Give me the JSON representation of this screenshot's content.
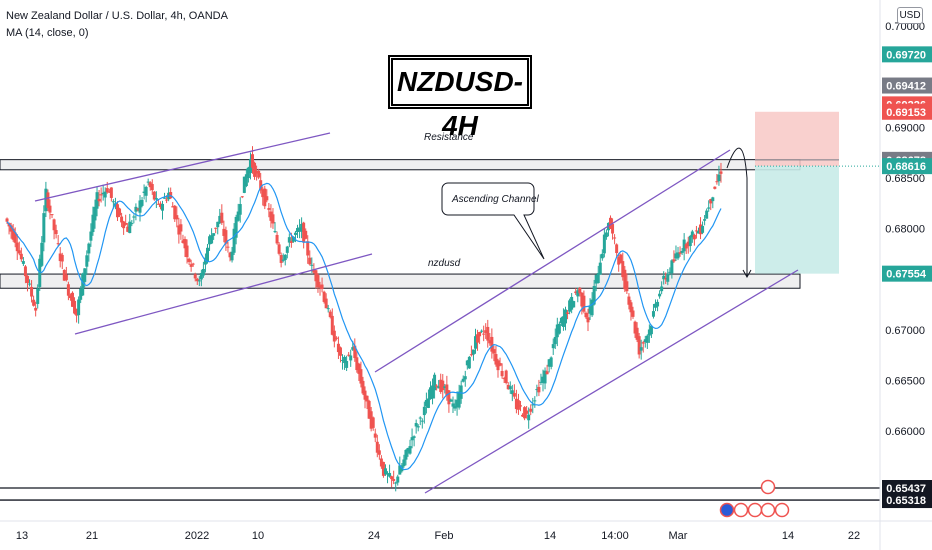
{
  "header": {
    "symbol_line": "New Zealand Dollar / U.S. Dollar, 4h, OANDA",
    "indicator_line": "MA (14, close, 0)"
  },
  "currency_button": "USD",
  "title": "NZDUSD-4H",
  "annotations": {
    "resistance": "Resistance",
    "ascending_channel": "Ascending Channel",
    "support": "nzdusd"
  },
  "colors": {
    "bull": "#26a69a",
    "bear": "#ef5350",
    "ma": "#2196f3",
    "channel": "#7e57c2",
    "stop_zone": "#f8c8c6",
    "target_zone": "#c8ebe8",
    "dark_label": "#131722"
  },
  "chart_data": {
    "type": "candlestick",
    "instrument": "NZDUSD",
    "timeframe": "4h",
    "ylim": [
      0.6515,
      0.7072
    ],
    "y_ticks": [
      "0.70000",
      "0.69000",
      "0.68500",
      "0.68000",
      "0.67000",
      "0.66500",
      "0.66000"
    ],
    "x_ticks": [
      "13",
      "21",
      "2022",
      "10",
      "24",
      "Feb",
      "14",
      "14:00",
      "Mar",
      "14",
      "22"
    ],
    "price_labels": [
      {
        "value": "0.69720",
        "color": "#26a69a"
      },
      {
        "value": "0.69412",
        "color": "#787b86"
      },
      {
        "value": "0.69226",
        "color": "#ef5350"
      },
      {
        "value": "0.69153",
        "color": "#ef5350"
      },
      {
        "value": "0.68678",
        "color": "#787b86"
      },
      {
        "value": "0.68616",
        "color": "#26a69a"
      },
      {
        "value": "0.67554",
        "color": "#26a69a"
      },
      {
        "value": "0.65437",
        "color": "#131722"
      },
      {
        "value": "0.65318",
        "color": "#131722"
      }
    ],
    "zones": [
      {
        "name": "resistance",
        "from": 0.6858,
        "to": 0.6868
      },
      {
        "name": "support",
        "from": 0.6741,
        "to": 0.6755
      }
    ],
    "position": {
      "entry": 0.68616,
      "stop": 0.69153,
      "target": 0.67554
    },
    "lows_levels": [
      0.65437,
      0.65318
    ],
    "price_path": [
      0.681,
      0.679,
      0.6755,
      0.672,
      0.6835,
      0.679,
      0.6745,
      0.6715,
      0.6775,
      0.683,
      0.684,
      0.6815,
      0.68,
      0.682,
      0.6845,
      0.682,
      0.6835,
      0.68,
      0.677,
      0.6745,
      0.679,
      0.681,
      0.677,
      0.683,
      0.6868,
      0.684,
      0.681,
      0.677,
      0.679,
      0.68,
      0.676,
      0.674,
      0.67,
      0.6665,
      0.668,
      0.664,
      0.66,
      0.656,
      0.6548,
      0.657,
      0.66,
      0.662,
      0.665,
      0.664,
      0.662,
      0.666,
      0.669,
      0.67,
      0.667,
      0.665,
      0.6625,
      0.6615,
      0.664,
      0.666,
      0.67,
      0.672,
      0.674,
      0.671,
      0.676,
      0.6808,
      0.677,
      0.673,
      0.668,
      0.67,
      0.674,
      0.676,
      0.678,
      0.679,
      0.68,
      0.683,
      0.6858
    ]
  }
}
